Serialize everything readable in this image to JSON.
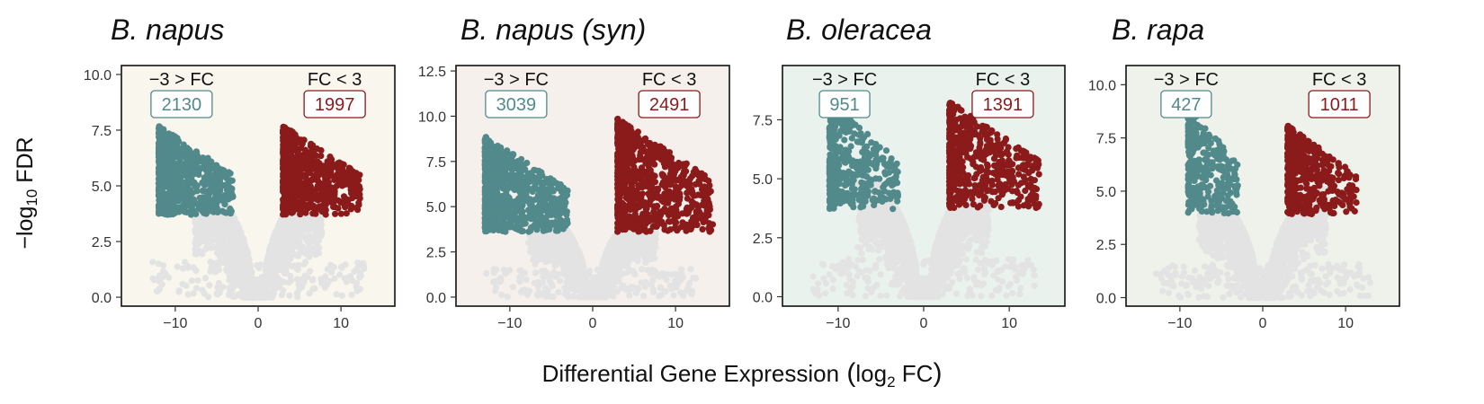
{
  "figure": {
    "ylabel_prefix": "−log",
    "ylabel_sub": "10",
    "ylabel_suffix": " FDR",
    "xlabel_main": "Differential Gene Expression",
    "xlabel_log": "log",
    "xlabel_sub": "2",
    "xlabel_fc": " FC",
    "colors": {
      "down": "#528a8c",
      "up": "#8b1a1a",
      "background_points": "#e3e3e3"
    }
  },
  "chart_data": [
    {
      "type": "scatter",
      "title": "B. napus",
      "panel_color": "#f9f6ee",
      "xlim": [
        -16.5,
        16.5
      ],
      "ylim": [
        -0.4,
        10.4
      ],
      "xticks": [
        -10,
        0,
        10
      ],
      "xtick_labels": [
        "−10",
        "0",
        "10"
      ],
      "yticks": [
        0,
        2.5,
        5,
        7.5,
        10
      ],
      "ytick_labels": [
        "0.0",
        "2.5",
        "5.0",
        "7.5",
        "10.0"
      ],
      "down_label": "−3 > FC",
      "up_label": "FC < 3",
      "down_count": "2130",
      "up_count": "1997",
      "down_region": {
        "x": [
          -12,
          -3
        ],
        "y": [
          3.7,
          7.7
        ]
      },
      "up_region": {
        "x": [
          3,
          12.3
        ],
        "y": [
          3.7,
          7.7
        ]
      }
    },
    {
      "type": "scatter",
      "title": "B. napus (syn)",
      "panel_color": "#f5f0ec",
      "xlim": [
        -16.5,
        16.5
      ],
      "ylim": [
        -0.5,
        12.8
      ],
      "xticks": [
        -10,
        0,
        10
      ],
      "xtick_labels": [
        "−10",
        "0",
        "10"
      ],
      "yticks": [
        0,
        2.5,
        5,
        7.5,
        10,
        12.5
      ],
      "ytick_labels": [
        "0.0",
        "2.5",
        "5.0",
        "7.5",
        "10.0",
        "12.5"
      ],
      "down_label": "−3 > FC",
      "up_label": "FC < 3",
      "down_count": "3039",
      "up_count": "2491",
      "down_region": {
        "x": [
          -13,
          -3
        ],
        "y": [
          3.6,
          8.9
        ]
      },
      "up_region": {
        "x": [
          3,
          14.5
        ],
        "y": [
          3.6,
          9.9
        ]
      }
    },
    {
      "type": "scatter",
      "title": "B. oleracea",
      "panel_color": "#eaf2ee",
      "xlim": [
        -16.5,
        16.5
      ],
      "ylim": [
        -0.4,
        9.8
      ],
      "xticks": [
        -10,
        0,
        10
      ],
      "xtick_labels": [
        "−10",
        "0",
        "10"
      ],
      "yticks": [
        0,
        2.5,
        5,
        7.5
      ],
      "ytick_labels": [
        "0.0",
        "2.5",
        "5.0",
        "7.5"
      ],
      "down_label": "−3 > FC",
      "up_label": "FC < 3",
      "down_count": "951",
      "up_count": "1391",
      "down_region": {
        "x": [
          -11,
          -3
        ],
        "y": [
          3.7,
          8.3
        ]
      },
      "up_region": {
        "x": [
          3,
          13.5
        ],
        "y": [
          3.7,
          8.3
        ]
      }
    },
    {
      "type": "scatter",
      "title": "B. rapa",
      "panel_color": "#eef2ea",
      "xlim": [
        -16.5,
        16.5
      ],
      "ylim": [
        -0.4,
        10.9
      ],
      "xticks": [
        -10,
        0,
        10
      ],
      "xtick_labels": [
        "−10",
        "0",
        "10"
      ],
      "yticks": [
        0,
        2.5,
        5,
        7.5,
        10
      ],
      "ytick_labels": [
        "0.0",
        "2.5",
        "5.0",
        "7.5",
        "10.0"
      ],
      "down_label": "−3 > FC",
      "up_label": "FC < 3",
      "down_count": "427",
      "up_count": "1011",
      "down_region": {
        "x": [
          -9,
          -3
        ],
        "y": [
          3.9,
          9.2
        ]
      },
      "up_region": {
        "x": [
          3,
          11.3
        ],
        "y": [
          3.9,
          8.1
        ]
      }
    }
  ]
}
